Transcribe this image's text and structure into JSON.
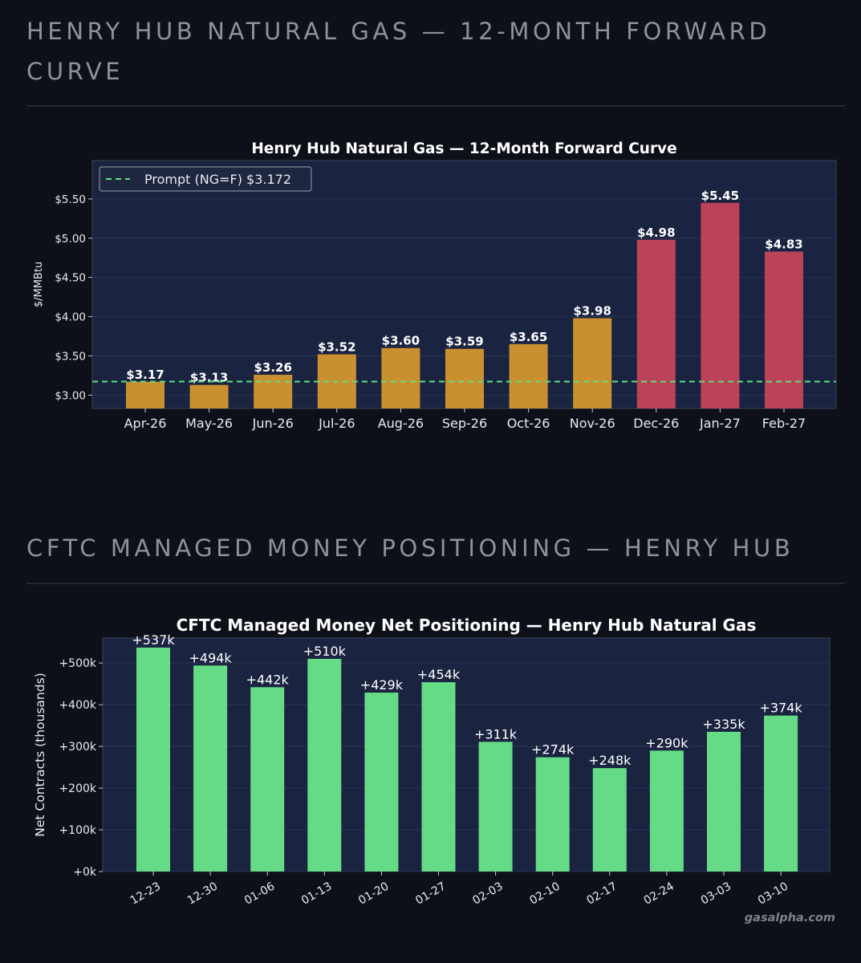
{
  "sections": [
    {
      "heading": "HENRY HUB NATURAL GAS — 12-MONTH FORWARD CURVE"
    },
    {
      "heading": "CFTC MANAGED MONEY POSITIONING — HENRY HUB"
    }
  ],
  "watermark": "gasalpha.com",
  "colors": {
    "page_bg": "#0d1018",
    "plot_bg": "#1a2340",
    "bar_near": "#d4972f",
    "bar_winter": "#c5455a",
    "bar_cftc": "#66db86",
    "prompt_line": "#5be07f"
  },
  "chart_data": [
    {
      "type": "bar",
      "title": "Henry Hub Natural Gas — 12-Month Forward Curve",
      "xlabel": "",
      "ylabel": "$/MMBtu",
      "ylim": [
        2.83,
        5.99
      ],
      "yticks": [
        3.0,
        3.5,
        4.0,
        4.5,
        5.0,
        5.5
      ],
      "ytick_labels": [
        "$3.00",
        "$3.50",
        "$4.00",
        "$4.50",
        "$5.00",
        "$5.50"
      ],
      "categories": [
        "Apr-26",
        "May-26",
        "Jun-26",
        "Jul-26",
        "Aug-26",
        "Sep-26",
        "Oct-26",
        "Nov-26",
        "Dec-26",
        "Jan-27",
        "Feb-27"
      ],
      "values": [
        3.17,
        3.13,
        3.26,
        3.52,
        3.6,
        3.59,
        3.65,
        3.98,
        4.98,
        5.45,
        4.83
      ],
      "value_labels": [
        "$3.17",
        "$3.13",
        "$3.26",
        "$3.52",
        "$3.60",
        "$3.59",
        "$3.65",
        "$3.98",
        "$4.98",
        "$5.45",
        "$4.83"
      ],
      "bar_groups": [
        "near",
        "near",
        "near",
        "near",
        "near",
        "near",
        "near",
        "near",
        "winter",
        "winter",
        "winter"
      ],
      "reference_line": {
        "value": 3.172,
        "label": "Prompt (NG=F) $3.172",
        "style": "dashed"
      },
      "legend": {
        "location": "top-left",
        "entries": [
          "Prompt (NG=F) $3.172"
        ]
      },
      "grid": true
    },
    {
      "type": "bar",
      "title": "CFTC Managed Money Net Positioning — Henry Hub Natural Gas",
      "xlabel": "",
      "ylabel": "Net Contracts (thousands)",
      "ylim": [
        0,
        560
      ],
      "yticks": [
        0,
        100,
        200,
        300,
        400,
        500
      ],
      "ytick_labels": [
        "+0k",
        "+100k",
        "+200k",
        "+300k",
        "+400k",
        "+500k"
      ],
      "categories": [
        "12-23",
        "12-30",
        "01-06",
        "01-13",
        "01-20",
        "01-27",
        "02-03",
        "02-10",
        "02-17",
        "02-24",
        "03-03",
        "03-10"
      ],
      "values": [
        537,
        494,
        442,
        510,
        429,
        454,
        311,
        274,
        248,
        290,
        335,
        374
      ],
      "value_labels": [
        "+537k",
        "+494k",
        "+442k",
        "+510k",
        "+429k",
        "+454k",
        "+311k",
        "+274k",
        "+248k",
        "+290k",
        "+335k",
        "+374k"
      ],
      "grid": true
    }
  ]
}
